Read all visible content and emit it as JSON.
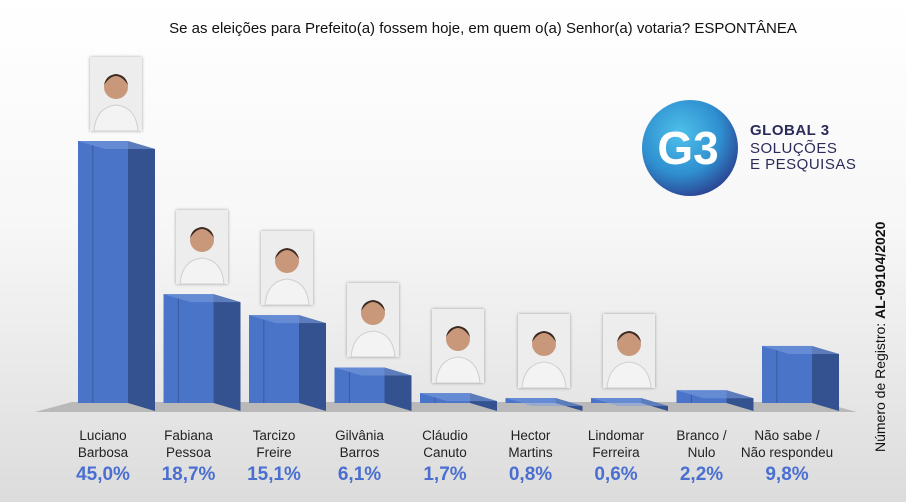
{
  "title": "Se as eleições para Prefeito(a) fossem hoje, em quem o(a) Senhor(a) votaria? ESPONTÂNEA",
  "logo": {
    "mark": "G3",
    "line1": "GLOBAL 3",
    "line2": "SOLUÇÕES",
    "line3": "E PESQUISAS"
  },
  "registro": {
    "prefix": "Número de Registro:",
    "code": "AL-09104/2020"
  },
  "colors": {
    "bar_front": "#4a74c8",
    "bar_side": "#34528f",
    "bar_top": "#7d9ee0",
    "value_text": "#4a6fd0"
  },
  "chart_data": {
    "type": "bar",
    "title": "Se as eleições para Prefeito(a) fossem hoje, em quem o(a) Senhor(a) votaria? ESPONTÂNEA",
    "categories": [
      "Luciano\nBarbosa",
      "Fabiana\nPessoa",
      "Tarcizo\nFreire",
      "Gilvânia\nBarros",
      "Cláudio\nCanuto",
      "Hector\nMartins",
      "Lindomar\nFerreira",
      "Branco /\nNulo",
      "Não sabe /\nNão respondeu"
    ],
    "values": [
      45.0,
      18.7,
      15.1,
      6.1,
      1.7,
      0.8,
      0.6,
      2.2,
      9.8
    ],
    "value_labels": [
      "45,0%",
      "18,7%",
      "15,1%",
      "6,1%",
      "1,7%",
      "0,8%",
      "0,6%",
      "2,2%",
      "9,8%"
    ],
    "ylim": [
      0,
      50
    ],
    "grid": false,
    "style": "3d-columns",
    "photos": [
      "candidate-photo",
      "candidate-photo",
      "candidate-photo",
      "candidate-photo",
      "candidate-photo",
      "candidate-photo",
      "candidate-photo",
      "none",
      "none"
    ]
  }
}
